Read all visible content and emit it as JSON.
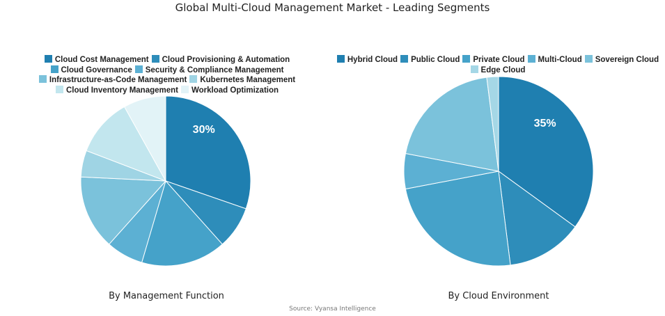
{
  "title": "Global Multi-Cloud Management Market - Leading Segments",
  "source": "Source: Vyansa Intelligence",
  "chart_data": [
    {
      "type": "pie",
      "caption": "By Management Function",
      "categories": [
        "Cloud Cost Management",
        "Cloud Provisioning & Automation",
        "Cloud Governance",
        "Security & Compliance Management",
        "Infrastructure-as-Code Management",
        "Kubernetes Management",
        "Cloud Inventory Management",
        "Workload Optimization"
      ],
      "values": [
        30,
        8,
        16,
        7,
        14,
        5,
        11,
        8
      ],
      "colors": [
        "#1f7fb0",
        "#2e8dba",
        "#45a2c9",
        "#5cb0d3",
        "#7bc2db",
        "#9fd4e4",
        "#c2e6ee",
        "#e2f3f7"
      ],
      "data_labels": [
        "30%",
        "",
        "",
        "",
        "",
        "",
        "",
        ""
      ],
      "legend_rows": [
        [
          0,
          1
        ],
        [
          2,
          3
        ],
        [
          4,
          5
        ],
        [
          6,
          7
        ]
      ],
      "legend_position": "top"
    },
    {
      "type": "pie",
      "caption": "By Cloud Environment",
      "categories": [
        "Hybrid Cloud",
        "Public Cloud",
        "Private Cloud",
        "Multi-Cloud",
        "Sovereign Cloud",
        "Edge Cloud"
      ],
      "values": [
        35,
        13,
        24,
        6,
        20,
        2
      ],
      "colors": [
        "#1f7fb0",
        "#2e8dba",
        "#45a2c9",
        "#5cb0d3",
        "#7bc2db",
        "#a5d7e6"
      ],
      "data_labels": [
        "35%",
        "",
        "",
        "",
        "",
        ""
      ],
      "legend_rows": [
        [
          0,
          1,
          2,
          3,
          4
        ],
        [
          5
        ]
      ],
      "legend_position": "top"
    }
  ]
}
